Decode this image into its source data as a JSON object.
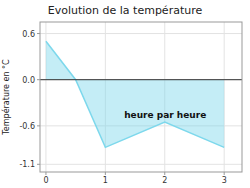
{
  "chart_data": {
    "type": "area",
    "title": "Evolution de la température",
    "y_label": "Température en °C",
    "annotations": [
      "heure par heure"
    ],
    "x": [
      0,
      0.5,
      1.0,
      2.0,
      3.0
    ],
    "values": [
      0.5,
      0.0,
      -0.88,
      -0.55,
      -0.88
    ],
    "color": "#7dd8ec",
    "xlim": [
      -0.1,
      3.3
    ],
    "ylim": [
      -1.2,
      0.75
    ],
    "xticks": [
      0,
      1,
      2,
      3
    ],
    "yticks": [
      -1.1,
      -0.6,
      {
        "value": 0.0,
        "label": "0.0"
      },
      0.6
    ],
    "grid": true
  }
}
